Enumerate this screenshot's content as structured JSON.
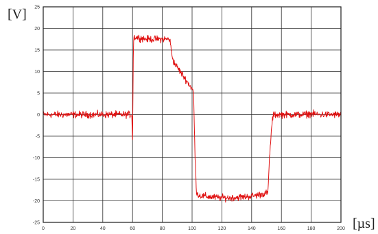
{
  "chart_data": {
    "type": "line",
    "title": "",
    "ylabel": "[V]",
    "xlabel": "[µs]",
    "xlim": [
      0,
      200
    ],
    "ylim": [
      -25,
      25
    ],
    "grid": true,
    "x_ticks": [
      "0",
      "20",
      "40",
      "60",
      "80",
      "100",
      "120",
      "140",
      "160",
      "180",
      "200"
    ],
    "y_ticks": [
      "25",
      "20",
      "15",
      "10",
      "5",
      "0",
      "-5",
      "-10",
      "-15",
      "-20",
      "-25"
    ],
    "series": [
      {
        "color": "#e01010",
        "noise": 0.6,
        "x": [
          0,
          59.5,
          60,
          60.6,
          61,
          65,
          70,
          75,
          80,
          85,
          86,
          87,
          88,
          90,
          92,
          94,
          96,
          98,
          100,
          101,
          102,
          103,
          104,
          105,
          110,
          115,
          120,
          125,
          130,
          135,
          140,
          145,
          150,
          151,
          152,
          153,
          154,
          155,
          160,
          165,
          170,
          175,
          180,
          185,
          190,
          195,
          200
        ],
        "y": [
          0,
          0,
          -6,
          17,
          18,
          17.8,
          17.5,
          17.5,
          17.5,
          17.5,
          15,
          13,
          12,
          11,
          10,
          9,
          8,
          7,
          6,
          5,
          -10,
          -18,
          -18.5,
          -18.8,
          -19,
          -19.2,
          -19.3,
          -19.3,
          -19.2,
          -19.1,
          -18.9,
          -18.6,
          -18.2,
          -18,
          -10,
          -5,
          -1,
          0,
          0,
          0,
          0,
          0,
          0.2,
          0,
          0,
          0,
          0
        ]
      }
    ]
  }
}
